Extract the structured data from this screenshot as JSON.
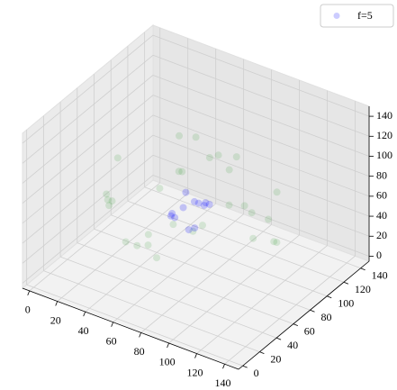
{
  "chart_data": {
    "type": "scatter3d",
    "xlim": [
      -5,
      150
    ],
    "ylim": [
      -5,
      150
    ],
    "zlim": [
      -5,
      150
    ],
    "xticks": [
      0,
      20,
      40,
      60,
      80,
      100,
      120,
      140
    ],
    "yticks": [
      0,
      20,
      40,
      60,
      80,
      100,
      120,
      140
    ],
    "zticks": [
      0,
      20,
      40,
      60,
      80,
      100,
      120,
      140
    ],
    "grid": true,
    "legend": "upper right",
    "series": [
      {
        "color": "#008000",
        "opacity": 0.12,
        "x": [
          20,
          35,
          50,
          70,
          90,
          110,
          120,
          30,
          45,
          60,
          80,
          100,
          115,
          25,
          40,
          65,
          85,
          105,
          55,
          75,
          95,
          130,
          15,
          50,
          70,
          90,
          40,
          60,
          100,
          120
        ],
        "y": [
          60,
          30,
          90,
          20,
          110,
          50,
          80,
          100,
          15,
          120,
          40,
          95,
          60,
          45,
          70,
          85,
          25,
          115,
          55,
          65,
          75,
          70,
          75,
          40,
          125,
          60,
          110,
          10,
          35,
          90
        ],
        "z": [
          50,
          80,
          110,
          60,
          40,
          100,
          70,
          40,
          90,
          75,
          125,
          30,
          95,
          70,
          20,
          120,
          85,
          65,
          15,
          45,
          110,
          60,
          80,
          35,
          75,
          130,
          55,
          65,
          85,
          40
        ]
      },
      {
        "name": "f=5",
        "color": "#0000ff",
        "opacity": 0.2,
        "x": [
          60,
          65,
          70,
          75,
          80,
          70,
          55,
          85,
          68,
          72,
          62,
          78
        ],
        "y": [
          65,
          70,
          75,
          60,
          70,
          80,
          72,
          68,
          55,
          85,
          78,
          62
        ],
        "z": [
          55,
          60,
          65,
          50,
          70,
          60,
          45,
          75,
          62,
          58,
          68,
          52
        ]
      }
    ]
  }
}
